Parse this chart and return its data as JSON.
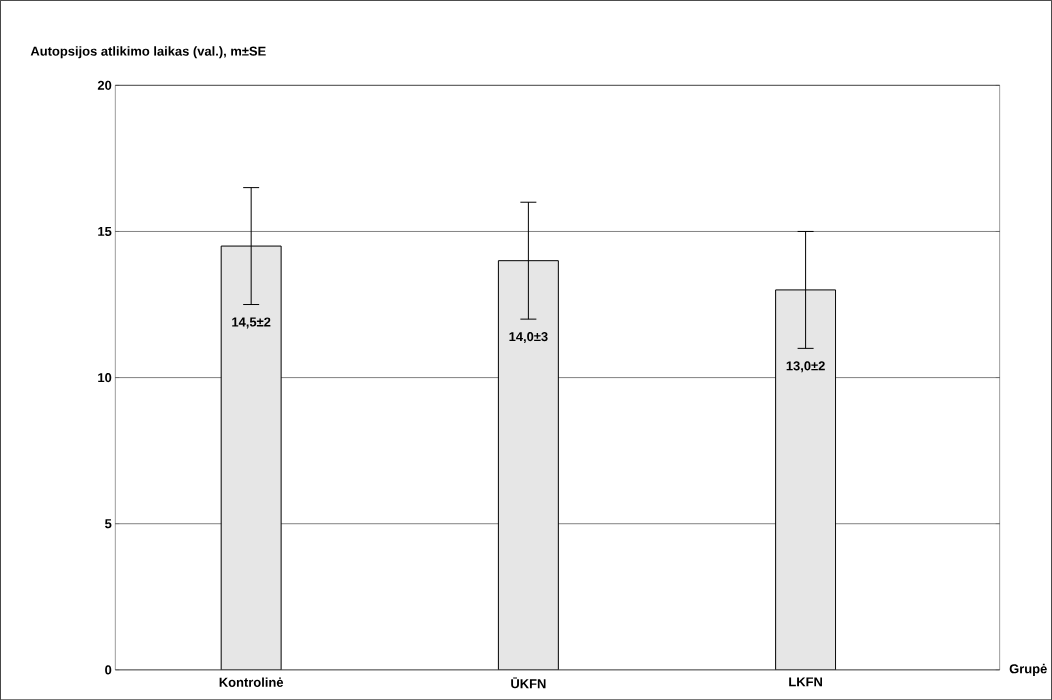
{
  "chart_data": {
    "type": "bar",
    "ylabel": "Autopsijos atlikimo laikas (val.), m±SE",
    "xlabel": "Grupė",
    "categories": [
      "Kontrolinė",
      "ŪKFN",
      "LKFN"
    ],
    "values": [
      14.5,
      14.0,
      13.0
    ],
    "errors": [
      2,
      2,
      2
    ],
    "value_labels": [
      "14,5±2",
      "14,0±3",
      "13,0±2"
    ],
    "color": "#e6e6e6",
    "ylim": [
      0,
      20
    ],
    "yticks": [
      0,
      5,
      10,
      15,
      20
    ],
    "grid": "y"
  }
}
